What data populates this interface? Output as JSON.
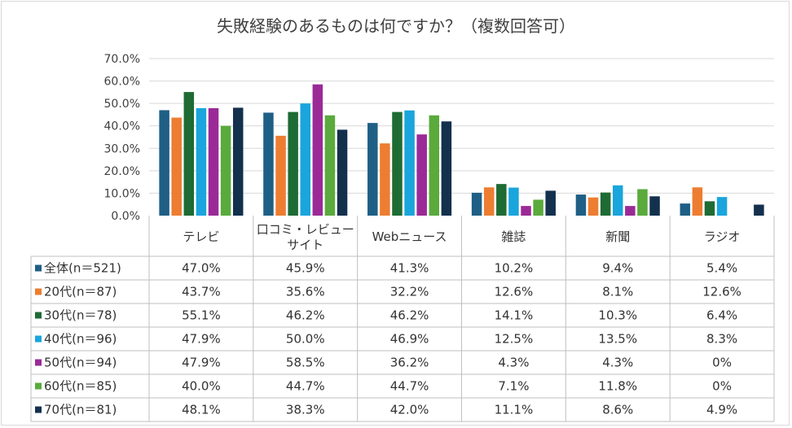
{
  "chart_data": {
    "type": "bar",
    "title": "失敗経験のあるものは何ですか？（複数回答可）",
    "categories": [
      "テレビ",
      "口コミ・レビューサイト",
      "Webニュース",
      "雑誌",
      "新聞",
      "ラジオ"
    ],
    "category_display": [
      [
        "テレビ"
      ],
      [
        "口コミ・レビュー",
        "サイト"
      ],
      [
        "Webニュース"
      ],
      [
        "雑誌"
      ],
      [
        "新聞"
      ],
      [
        "ラジオ"
      ]
    ],
    "ylim": [
      0,
      70
    ],
    "yticks": [
      "0.0%",
      "10.0%",
      "20.0%",
      "30.0%",
      "40.0%",
      "50.0%",
      "60.0%",
      "70.0%"
    ],
    "grid": true,
    "legend": "data-table",
    "series": [
      {
        "name": "全体(n＝521)",
        "color": "#1f5f86",
        "values": [
          47.0,
          45.9,
          41.3,
          10.2,
          9.4,
          5.4
        ],
        "labels": [
          "47.0%",
          "45.9%",
          "41.3%",
          "10.2%",
          "9.4%",
          "5.4%"
        ]
      },
      {
        "name": "20代(n＝87)",
        "color": "#ed7d31",
        "values": [
          43.7,
          35.6,
          32.2,
          12.6,
          8.1,
          12.6
        ],
        "labels": [
          "43.7%",
          "35.6%",
          "32.2%",
          "12.6%",
          "8.1%",
          "12.6%"
        ]
      },
      {
        "name": "30代(n＝78)",
        "color": "#1e6b34",
        "values": [
          55.1,
          46.2,
          46.2,
          14.1,
          10.3,
          6.4
        ],
        "labels": [
          "55.1%",
          "46.2%",
          "46.2%",
          "14.1%",
          "10.3%",
          "6.4%"
        ]
      },
      {
        "name": "40代(n＝96)",
        "color": "#1aa5dc",
        "values": [
          47.9,
          50.0,
          46.9,
          12.5,
          13.5,
          8.3
        ],
        "labels": [
          "47.9%",
          "50.0%",
          "46.9%",
          "12.5%",
          "13.5%",
          "8.3%"
        ]
      },
      {
        "name": "50代(n＝94)",
        "color": "#9b2a97",
        "values": [
          47.9,
          58.5,
          36.2,
          4.3,
          4.3,
          0
        ],
        "labels": [
          "47.9%",
          "58.5%",
          "36.2%",
          "4.3%",
          "4.3%",
          "0%"
        ]
      },
      {
        "name": "60代(n＝85)",
        "color": "#5aaa3c",
        "values": [
          40.0,
          44.7,
          44.7,
          7.1,
          11.8,
          0
        ],
        "labels": [
          "40.0%",
          "44.7%",
          "44.7%",
          "7.1%",
          "11.8%",
          "0%"
        ]
      },
      {
        "name": "70代(n＝81)",
        "color": "#13304d",
        "values": [
          48.1,
          38.3,
          42.0,
          11.1,
          8.6,
          4.9
        ],
        "labels": [
          "48.1%",
          "38.3%",
          "42.0%",
          "11.1%",
          "8.6%",
          "4.9%"
        ]
      }
    ]
  }
}
